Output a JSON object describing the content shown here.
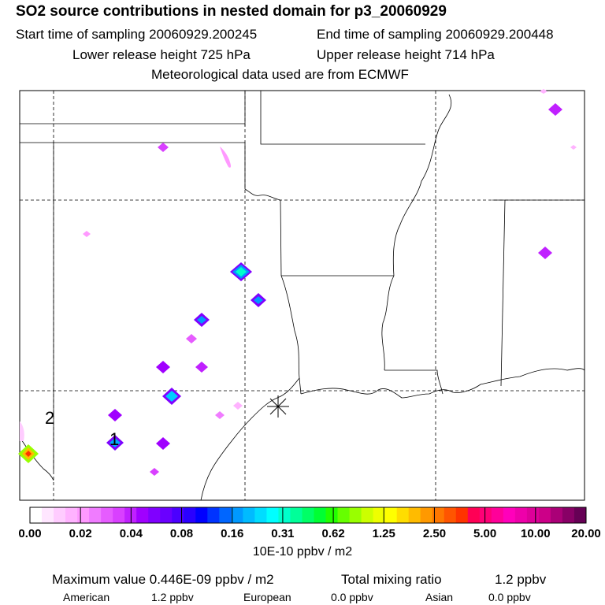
{
  "header": {
    "title": "SO2 source contributions in nested domain for p3_20060929",
    "start_label": "Start time of sampling 20060929.200245",
    "end_label": "End time of sampling 20060929.200448",
    "lower_label": "Lower release height  725 hPa",
    "upper_label": "Upper release height  714 hPa",
    "met_label": "Meteorological data used are from ECMWF"
  },
  "map": {
    "marker_labels": [
      "1",
      "2"
    ],
    "receptor": "star"
  },
  "colorbar": {
    "ticks": [
      "0.00",
      "0.02",
      "0.04",
      "0.08",
      "0.16",
      "0.31",
      "0.62",
      "1.25",
      "2.50",
      "5.00",
      "10.00",
      "20.00"
    ],
    "units": "10E-10 ppbv / m2",
    "colors": [
      "#ffffff",
      "#ffe6ff",
      "#ffccff",
      "#ffb3ff",
      "#ff99ff",
      "#f07cff",
      "#e65cff",
      "#d940ff",
      "#c020ff",
      "#a000ff",
      "#8000ff",
      "#6a00ff",
      "#4b00ff",
      "#2a00ff",
      "#0000ff",
      "#0033ff",
      "#0066ff",
      "#0099ff",
      "#00bbff",
      "#00ddff",
      "#00ffff",
      "#00ffcc",
      "#00ff99",
      "#00ff66",
      "#00ff33",
      "#22ff00",
      "#66ff00",
      "#99ff00",
      "#ccff00",
      "#eeff00",
      "#ffff00",
      "#ffdd00",
      "#ffbb00",
      "#ff9900",
      "#ff7700",
      "#ff5500",
      "#ff3300",
      "#ff0055",
      "#ff0077",
      "#ff0099",
      "#ff00bb",
      "#ee00aa",
      "#dd0099",
      "#cc0088",
      "#aa0077",
      "#880066",
      "#660055"
    ]
  },
  "stats": {
    "max_label": "Maximum value  0.446E-09 ppbv / m2",
    "total_label": "Total mixing ratio",
    "total_value": "1.2 ppbv"
  },
  "regions": [
    {
      "name": "American",
      "value": "1.2 ppbv"
    },
    {
      "name": "European",
      "value": "0.0 ppbv"
    },
    {
      "name": "Asian",
      "value": "0.0 ppbv"
    }
  ]
}
